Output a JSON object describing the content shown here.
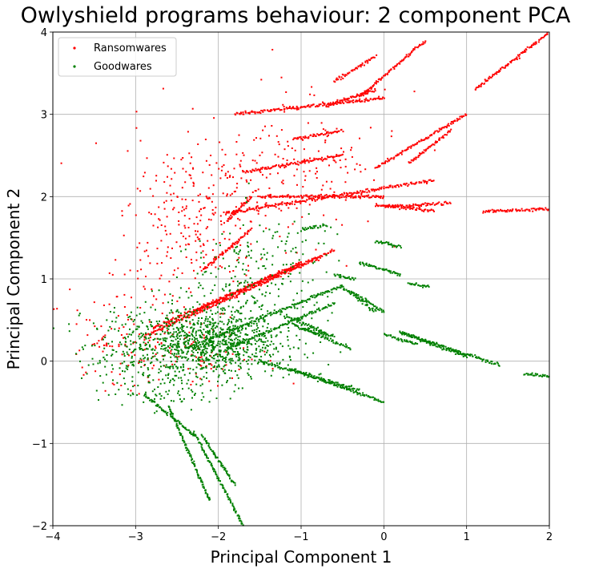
{
  "chart_data": {
    "type": "scatter",
    "title": "Owlyshield programs behaviour: 2 component PCA",
    "xlabel": "Principal Component 1",
    "ylabel": "Principal Component 2",
    "xlim": [
      -4,
      2
    ],
    "ylim": [
      -2,
      4
    ],
    "xticks": [
      -4,
      -3,
      -2,
      -1,
      0,
      1,
      2
    ],
    "yticks": [
      -2,
      -1,
      0,
      1,
      2,
      3,
      4
    ],
    "xtick_labels": [
      "−4",
      "−3",
      "−2",
      "−1",
      "0",
      "1",
      "2"
    ],
    "ytick_labels": [
      "−2",
      "−1",
      "0",
      "1",
      "2",
      "3",
      "4"
    ],
    "grid": true,
    "legend_position": "top-left",
    "series": [
      {
        "name": "Ransomwares",
        "color": "#ff0000",
        "segments": [
          [
            [
              -2.8,
              0.4
            ],
            [
              -0.6,
              1.35
            ]
          ],
          [
            [
              -2.9,
              0.3
            ],
            [
              -0.8,
              1.25
            ]
          ],
          [
            [
              -2.3,
              0.6
            ],
            [
              -1.0,
              1.2
            ]
          ],
          [
            [
              -0.1,
              1.9
            ],
            [
              0.6,
              1.83
            ]
          ],
          [
            [
              0.0,
              1.88
            ],
            [
              0.8,
              1.92
            ]
          ],
          [
            [
              1.2,
              1.82
            ],
            [
              2.0,
              1.85
            ]
          ],
          [
            [
              -0.1,
              2.35
            ],
            [
              1.0,
              3.0
            ]
          ],
          [
            [
              0.3,
              2.4
            ],
            [
              0.8,
              2.8
            ]
          ],
          [
            [
              1.1,
              3.3
            ],
            [
              2.0,
              4.0
            ]
          ],
          [
            [
              -0.3,
              3.2
            ],
            [
              0.5,
              3.9
            ]
          ],
          [
            [
              -1.9,
              1.8
            ],
            [
              0.6,
              2.2
            ]
          ],
          [
            [
              -1.5,
              2.0
            ],
            [
              0.0,
              2.0
            ]
          ],
          [
            [
              -1.7,
              2.3
            ],
            [
              -0.5,
              2.5
            ]
          ],
          [
            [
              -1.8,
              3.0
            ],
            [
              0.0,
              3.2
            ]
          ],
          [
            [
              -0.6,
              3.4
            ],
            [
              -0.1,
              3.7
            ]
          ],
          [
            [
              -0.7,
              3.1
            ],
            [
              -0.1,
              3.3
            ]
          ],
          [
            [
              -1.1,
              2.7
            ],
            [
              -0.5,
              2.8
            ]
          ],
          [
            [
              -1.9,
              1.7
            ],
            [
              -1.6,
              2.0
            ]
          ],
          [
            [
              -2.2,
              1.1
            ],
            [
              -1.6,
              1.6
            ]
          ]
        ],
        "clusters": [
          {
            "cx": -2.3,
            "cy": 1.6,
            "sx": 0.4,
            "sy": 0.55,
            "n": 260
          },
          {
            "cx": -3.2,
            "cy": 0.35,
            "sx": 0.35,
            "sy": 0.35,
            "n": 110
          },
          {
            "cx": -1.3,
            "cy": 2.1,
            "sx": 0.5,
            "sy": 0.4,
            "n": 110
          },
          {
            "cx": -2.3,
            "cy": 0.1,
            "sx": 0.45,
            "sy": 0.2,
            "n": 80
          },
          {
            "cx": -0.8,
            "cy": 2.6,
            "sx": 0.5,
            "sy": 0.5,
            "n": 80
          }
        ]
      },
      {
        "name": "Goodwares",
        "color": "#008000",
        "segments": [
          [
            [
              -2.4,
              0.15
            ],
            [
              -0.5,
              0.92
            ]
          ],
          [
            [
              -1.9,
              0.15
            ],
            [
              -0.6,
              0.7
            ]
          ],
          [
            [
              -1.5,
              0.0
            ],
            [
              -0.3,
              -0.35
            ]
          ],
          [
            [
              -1.1,
              -0.1
            ],
            [
              0.0,
              -0.5
            ]
          ],
          [
            [
              -1.0,
              0.4
            ],
            [
              -0.6,
              0.3
            ]
          ],
          [
            [
              -1.1,
              0.45
            ],
            [
              -0.4,
              0.15
            ]
          ],
          [
            [
              -0.5,
              0.9
            ],
            [
              -0.1,
              0.6
            ]
          ],
          [
            [
              -0.4,
              0.85
            ],
            [
              0.0,
              0.6
            ]
          ],
          [
            [
              0.2,
              0.35
            ],
            [
              1.0,
              0.05
            ]
          ],
          [
            [
              0.2,
              0.35
            ],
            [
              1.4,
              -0.05
            ]
          ],
          [
            [
              1.7,
              -0.15
            ],
            [
              2.0,
              -0.18
            ]
          ],
          [
            [
              0.0,
              0.33
            ],
            [
              0.4,
              0.2
            ]
          ],
          [
            [
              -1.2,
              0.55
            ],
            [
              -0.7,
              0.35
            ]
          ],
          [
            [
              -2.9,
              -0.4
            ],
            [
              -2.3,
              -0.9
            ]
          ],
          [
            [
              -2.6,
              -0.55
            ],
            [
              -2.1,
              -1.7
            ]
          ],
          [
            [
              -2.3,
              -0.85
            ],
            [
              -1.7,
              -2.0
            ]
          ],
          [
            [
              -2.2,
              -0.9
            ],
            [
              -1.8,
              -1.5
            ]
          ],
          [
            [
              -0.6,
              1.05
            ],
            [
              -0.35,
              1.0
            ]
          ],
          [
            [
              -0.3,
              1.2
            ],
            [
              0.2,
              1.05
            ]
          ],
          [
            [
              -0.1,
              1.45
            ],
            [
              0.2,
              1.4
            ]
          ],
          [
            [
              0.3,
              0.95
            ],
            [
              0.55,
              0.9
            ]
          ],
          [
            [
              -1.0,
              1.6
            ],
            [
              -0.7,
              1.65
            ]
          ]
        ],
        "clusters": [
          {
            "cx": -2.3,
            "cy": 0.25,
            "sx": 0.45,
            "sy": 0.22,
            "n": 700
          },
          {
            "cx": -1.8,
            "cy": 0.2,
            "sx": 0.4,
            "sy": 0.2,
            "n": 300
          },
          {
            "cx": -1.6,
            "cy": 0.9,
            "sx": 0.4,
            "sy": 0.3,
            "n": 140
          },
          {
            "cx": -3.1,
            "cy": 0.05,
            "sx": 0.35,
            "sy": 0.25,
            "n": 100
          },
          {
            "cx": -2.6,
            "cy": -0.3,
            "sx": 0.3,
            "sy": 0.15,
            "n": 80
          },
          {
            "cx": -1.2,
            "cy": 1.3,
            "sx": 0.4,
            "sy": 0.35,
            "n": 70
          }
        ]
      }
    ]
  }
}
